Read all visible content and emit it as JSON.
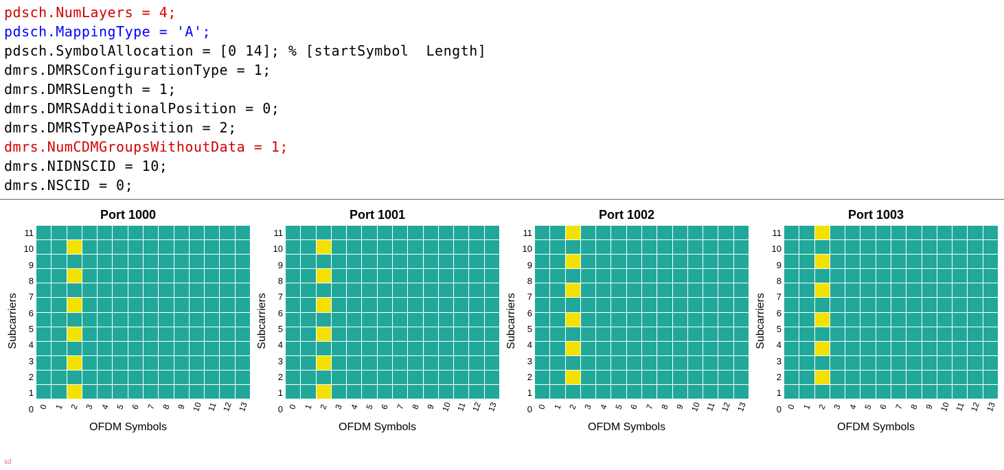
{
  "code": {
    "lines": [
      {
        "tokens": [
          {
            "t": "pdsch",
            "c": "red"
          },
          {
            "t": ".NumLayers = ",
            "c": "red"
          },
          {
            "t": "4",
            "c": "red"
          },
          {
            "t": ";",
            "c": "red"
          }
        ]
      },
      {
        "tokens": [
          {
            "t": "pdsch",
            "c": "blue"
          },
          {
            "t": ".MappingType = ",
            "c": "blue"
          },
          {
            "t": "'A'",
            "c": "blue"
          },
          {
            "t": ";",
            "c": "blue"
          }
        ]
      },
      {
        "tokens": [
          {
            "t": "pdsch.SymbolAllocation = [0 14]; % [startSymbol  Length]",
            "c": "black"
          }
        ]
      },
      {
        "tokens": [
          {
            "t": "dmrs.DMRSConfigurationType = 1;",
            "c": "black"
          }
        ]
      },
      {
        "tokens": [
          {
            "t": "dmrs.DMRSLength = 1;",
            "c": "black"
          }
        ]
      },
      {
        "tokens": [
          {
            "t": "dmrs.DMRSAdditionalPosition = 0;",
            "c": "black"
          }
        ]
      },
      {
        "tokens": [
          {
            "t": "dmrs.DMRSTypeAPosition = 2;",
            "c": "black"
          }
        ]
      },
      {
        "tokens": [
          {
            "t": "dmrs",
            "c": "red"
          },
          {
            "t": ".NumCDMGroupsWithoutData = ",
            "c": "red"
          },
          {
            "t": "1",
            "c": "red"
          },
          {
            "t": ";",
            "c": "red"
          }
        ]
      },
      {
        "tokens": [
          {
            "t": "dmrs.NIDNSCID = 10;",
            "c": "black"
          }
        ]
      },
      {
        "tokens": [
          {
            "t": "dmrs.NSCID = 0;",
            "c": "black"
          }
        ]
      }
    ]
  },
  "charts": {
    "common": {
      "y_label": "Subcarriers",
      "x_label": "OFDM Symbols",
      "num_subcarriers": 12,
      "num_symbols": 14,
      "y_ticks": [
        "0",
        "1",
        "2",
        "3",
        "4",
        "5",
        "6",
        "7",
        "8",
        "9",
        "10",
        "11"
      ],
      "x_ticks": [
        "0",
        "1",
        "2",
        "3",
        "4",
        "5",
        "6",
        "7",
        "8",
        "9",
        "10",
        "11",
        "12",
        "13"
      ],
      "cell_color": "#21a89a",
      "dmrs_color": "#f3e200",
      "background_color": "#ffffff",
      "title_fontsize": 18,
      "label_fontsize": 16,
      "tick_fontsize": 13
    },
    "panels": [
      {
        "title": "Port 1000",
        "dmrs_symbol": 2,
        "dmrs_subcarriers": [
          0,
          2,
          4,
          6,
          8,
          10
        ]
      },
      {
        "title": "Port 1001",
        "dmrs_symbol": 2,
        "dmrs_subcarriers": [
          0,
          2,
          4,
          6,
          8,
          10
        ]
      },
      {
        "title": "Port 1002",
        "dmrs_symbol": 2,
        "dmrs_subcarriers": [
          1,
          3,
          5,
          7,
          9,
          11
        ]
      },
      {
        "title": "Port 1003",
        "dmrs_symbol": 2,
        "dmrs_subcarriers": [
          1,
          3,
          5,
          7,
          9,
          11
        ]
      }
    ]
  },
  "watermark": "sd"
}
